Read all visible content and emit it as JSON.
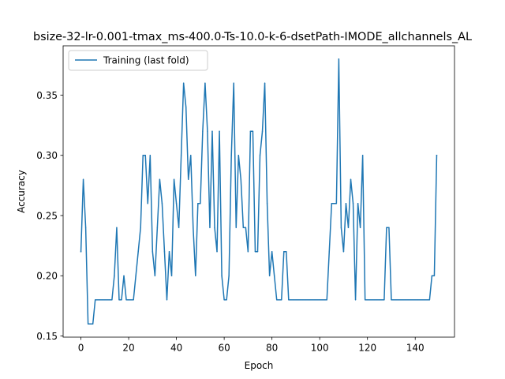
{
  "chart_data": {
    "type": "line",
    "title": "bsize-32-lr-0.001-tmax_ms-400.0-Ts-10.0-k-6-dsetPath-IMODE_allchannels_AL",
    "xlabel": "Epoch",
    "ylabel": "Accuracy",
    "xlim": [
      -7.45,
      156.45
    ],
    "ylim": [
      0.149,
      0.391
    ],
    "xticks": [
      0,
      20,
      40,
      60,
      80,
      100,
      120,
      140
    ],
    "yticks": [
      0.15,
      0.2,
      0.25,
      0.3,
      0.35
    ],
    "ytick_labels": [
      "0.15",
      "0.20",
      "0.25",
      "0.30",
      "0.35"
    ],
    "grid": false,
    "legend_position": "top-left",
    "series": [
      {
        "name": "Training (last fold)",
        "color": "#1f77b4",
        "x": [
          0,
          1,
          2,
          3,
          4,
          5,
          6,
          7,
          8,
          9,
          10,
          11,
          12,
          13,
          14,
          15,
          16,
          17,
          18,
          19,
          20,
          21,
          22,
          23,
          24,
          25,
          26,
          27,
          28,
          29,
          30,
          31,
          32,
          33,
          34,
          35,
          36,
          37,
          38,
          39,
          40,
          41,
          42,
          43,
          44,
          45,
          46,
          47,
          48,
          49,
          50,
          51,
          52,
          53,
          54,
          55,
          56,
          57,
          58,
          59,
          60,
          61,
          62,
          63,
          64,
          65,
          66,
          67,
          68,
          69,
          70,
          71,
          72,
          73,
          74,
          75,
          76,
          77,
          78,
          79,
          80,
          81,
          82,
          83,
          84,
          85,
          86,
          87,
          88,
          89,
          90,
          91,
          92,
          93,
          94,
          95,
          96,
          97,
          98,
          99,
          100,
          101,
          102,
          103,
          104,
          105,
          106,
          107,
          108,
          109,
          110,
          111,
          112,
          113,
          114,
          115,
          116,
          117,
          118,
          119,
          120,
          121,
          122,
          123,
          124,
          125,
          126,
          127,
          128,
          129,
          130,
          131,
          132,
          133,
          134,
          135,
          136,
          137,
          138,
          139,
          140,
          141,
          142,
          143,
          144,
          145,
          146,
          147,
          148,
          149
        ],
        "y": [
          0.22,
          0.28,
          0.24,
          0.16,
          0.16,
          0.16,
          0.18,
          0.18,
          0.18,
          0.18,
          0.18,
          0.18,
          0.18,
          0.18,
          0.2,
          0.24,
          0.18,
          0.18,
          0.2,
          0.18,
          0.18,
          0.18,
          0.18,
          0.2,
          0.22,
          0.24,
          0.3,
          0.3,
          0.26,
          0.3,
          0.22,
          0.2,
          0.24,
          0.28,
          0.26,
          0.22,
          0.18,
          0.22,
          0.2,
          0.28,
          0.26,
          0.24,
          0.3,
          0.36,
          0.34,
          0.28,
          0.3,
          0.24,
          0.2,
          0.26,
          0.26,
          0.32,
          0.36,
          0.32,
          0.24,
          0.32,
          0.24,
          0.22,
          0.32,
          0.2,
          0.18,
          0.18,
          0.2,
          0.3,
          0.36,
          0.24,
          0.3,
          0.28,
          0.24,
          0.24,
          0.22,
          0.32,
          0.32,
          0.22,
          0.22,
          0.3,
          0.32,
          0.36,
          0.26,
          0.2,
          0.22,
          0.2,
          0.18,
          0.18,
          0.18,
          0.22,
          0.22,
          0.18,
          0.18,
          0.18,
          0.18,
          0.18,
          0.18,
          0.18,
          0.18,
          0.18,
          0.18,
          0.18,
          0.18,
          0.18,
          0.18,
          0.18,
          0.18,
          0.18,
          0.22,
          0.26,
          0.26,
          0.26,
          0.38,
          0.24,
          0.22,
          0.26,
          0.24,
          0.28,
          0.26,
          0.18,
          0.26,
          0.24,
          0.3,
          0.18,
          0.18,
          0.18,
          0.18,
          0.18,
          0.18,
          0.18,
          0.18,
          0.18,
          0.24,
          0.24,
          0.18,
          0.18,
          0.18,
          0.18,
          0.18,
          0.18,
          0.18,
          0.18,
          0.18,
          0.18,
          0.18,
          0.18,
          0.18,
          0.18,
          0.18,
          0.18,
          0.18,
          0.2,
          0.2,
          0.3
        ]
      }
    ]
  }
}
